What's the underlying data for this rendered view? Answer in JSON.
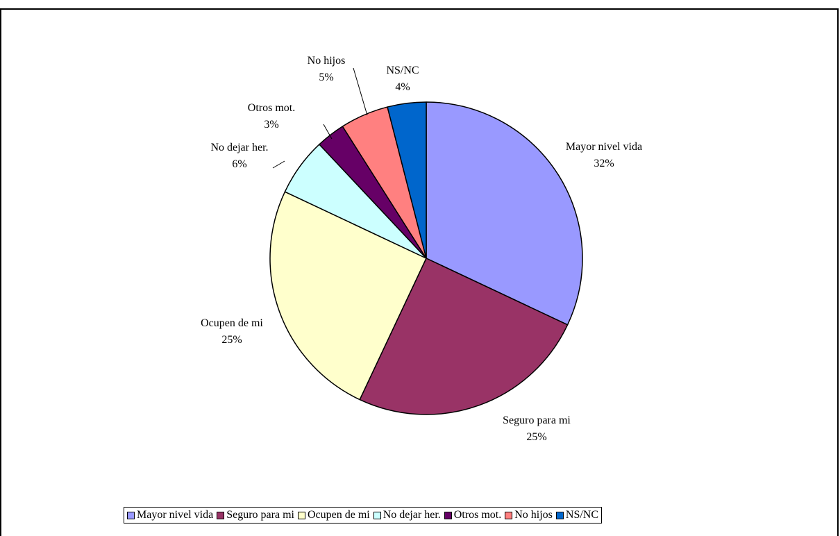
{
  "chart_data": {
    "type": "pie",
    "title": "",
    "start_angle_deg": 0,
    "direction": "clockwise",
    "legend_position": "bottom",
    "slices": [
      {
        "label": "Mayor nivel vida",
        "value": 32,
        "value_label": "32%",
        "color": "#9999FF"
      },
      {
        "label": "Seguro para mi",
        "value": 25,
        "value_label": "25%",
        "color": "#993366"
      },
      {
        "label": "Ocupen de mi",
        "value": 25,
        "value_label": "25%",
        "color": "#FFFFCC"
      },
      {
        "label": "No dejar her.",
        "value": 6,
        "value_label": "6%",
        "color": "#CCFFFF"
      },
      {
        "label": "Otros mot.",
        "value": 3,
        "value_label": "3%",
        "color": "#660066"
      },
      {
        "label": "No hijos",
        "value": 5,
        "value_label": "5%",
        "color": "#FF8080"
      },
      {
        "label": "NS/NC",
        "value": 4,
        "value_label": "4%",
        "color": "#0066CC"
      }
    ]
  }
}
